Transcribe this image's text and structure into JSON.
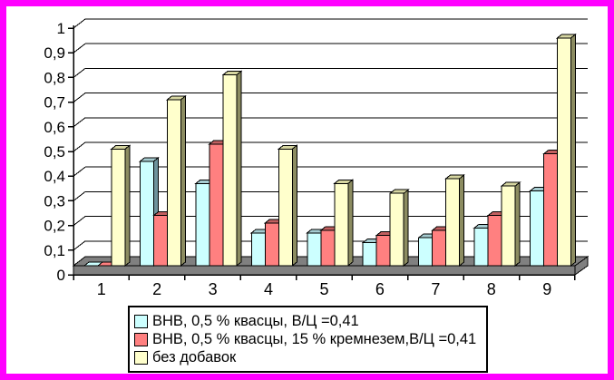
{
  "frame": {
    "border_color": "#FF00FF",
    "background_color": "#FFFFFF"
  },
  "chart_data": {
    "type": "bar",
    "style": "3d-column-excel",
    "title": "",
    "xlabel": "",
    "ylabel": "",
    "categories": [
      "1",
      "2",
      "3",
      "4",
      "5",
      "6",
      "7",
      "8",
      "9"
    ],
    "series": [
      {
        "name": "ВНВ, 0,5 % квасцы, В/Ц =0,41",
        "color": "#CCFFFF",
        "color_top": "#A6CCD1",
        "color_side": "#6E939C",
        "values": [
          0.01,
          0.46,
          0.37,
          0.17,
          0.17,
          0.13,
          0.15,
          0.19,
          0.34
        ]
      },
      {
        "name": "ВНВ, 0,5 % квасцы, 15 % кремнезем,В/Ц =0,41",
        "color": "#FF8080",
        "color_top": "#C25F5F",
        "color_side": "#994D4D",
        "values": [
          0.01,
          0.24,
          0.53,
          0.21,
          0.18,
          0.16,
          0.18,
          0.24,
          0.49
        ]
      },
      {
        "name": "без добавок",
        "color": "#FFFFCC",
        "color_top": "#D6D6A1",
        "color_side": "#8C8C61",
        "values": [
          0.51,
          0.71,
          0.81,
          0.51,
          0.37,
          0.33,
          0.39,
          0.36,
          0.96
        ]
      }
    ],
    "y_axis": {
      "min": 0,
      "max": 1,
      "step": 0.1,
      "tick_labels": [
        "0",
        "0,1",
        "0,2",
        "0,3",
        "0,4",
        "0,5",
        "0,6",
        "0,7",
        "0,8",
        "0,9",
        "1"
      ]
    },
    "x_axis": {
      "tick_labels": [
        "1",
        "2",
        "3",
        "4",
        "5",
        "6",
        "7",
        "8",
        "9"
      ]
    },
    "grid": true,
    "legend_position": "bottom",
    "axis_color": "#000000",
    "floor_color": "#808080",
    "wall_color": "#FFFFFF"
  }
}
